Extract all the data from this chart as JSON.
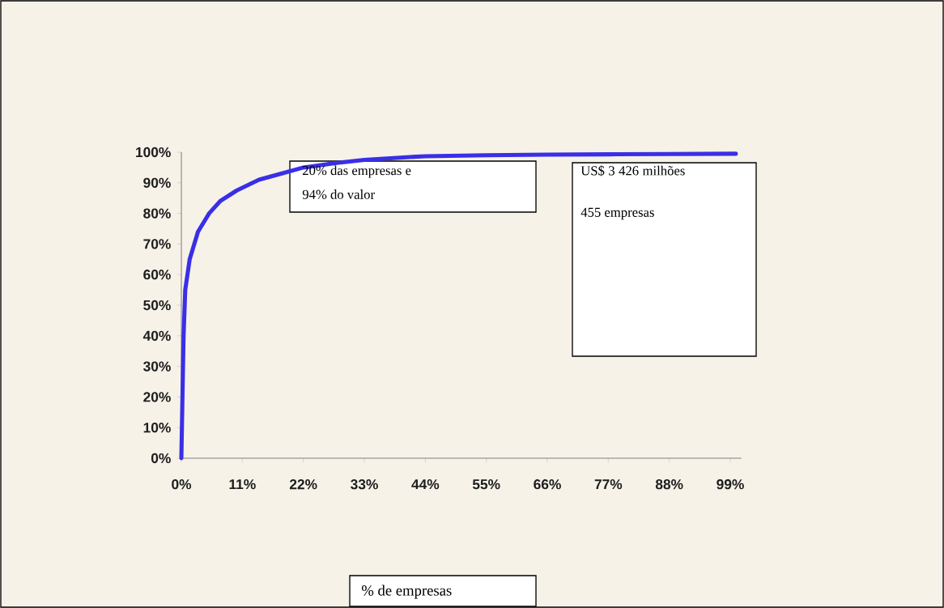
{
  "chart_data": {
    "type": "line",
    "annotations": [
      "20% das empresas e",
      "94% do valor",
      "US$ 3 426 milhões",
      "455 empresas",
      "% de empresas"
    ],
    "x": [
      0,
      0.2,
      0.4,
      0.7,
      1.5,
      3,
      5,
      7,
      10,
      14,
      18,
      22,
      28,
      33,
      40,
      44,
      55,
      66,
      77,
      88,
      100
    ],
    "series": [
      {
        "color": "#3a2fe6",
        "values": [
          0,
          20,
          40,
          55,
          65,
          74,
          80,
          84,
          87.5,
          91,
          93,
          95,
          96.5,
          97.5,
          98.3,
          98.7,
          99,
          99.2,
          99.3,
          99.4,
          99.5
        ]
      }
    ],
    "xlim": [
      0,
      101
    ],
    "ylim": [
      0,
      100
    ],
    "xticks": [
      {
        "value": 0,
        "label": "0%"
      },
      {
        "value": 11,
        "label": "11%"
      },
      {
        "value": 22,
        "label": "22%"
      },
      {
        "value": 33,
        "label": "33%"
      },
      {
        "value": 44,
        "label": "44%"
      },
      {
        "value": 55,
        "label": "55%"
      },
      {
        "value": 66,
        "label": "66%"
      },
      {
        "value": 77,
        "label": "77%"
      },
      {
        "value": 88,
        "label": "88%"
      },
      {
        "value": 99,
        "label": "99%"
      }
    ],
    "yticks": [
      {
        "value": 0,
        "label": "0%"
      },
      {
        "value": 10,
        "label": "10%"
      },
      {
        "value": 20,
        "label": "20%"
      },
      {
        "value": 30,
        "label": "30%"
      },
      {
        "value": 40,
        "label": "40%"
      },
      {
        "value": 50,
        "label": "50%"
      },
      {
        "value": 60,
        "label": "60%"
      },
      {
        "value": 70,
        "label": "70%"
      },
      {
        "value": 80,
        "label": "80%"
      },
      {
        "value": 90,
        "label": "90%"
      },
      {
        "value": 100,
        "label": "100%"
      }
    ],
    "grid": false,
    "marker": "none",
    "line_style": "solid"
  }
}
